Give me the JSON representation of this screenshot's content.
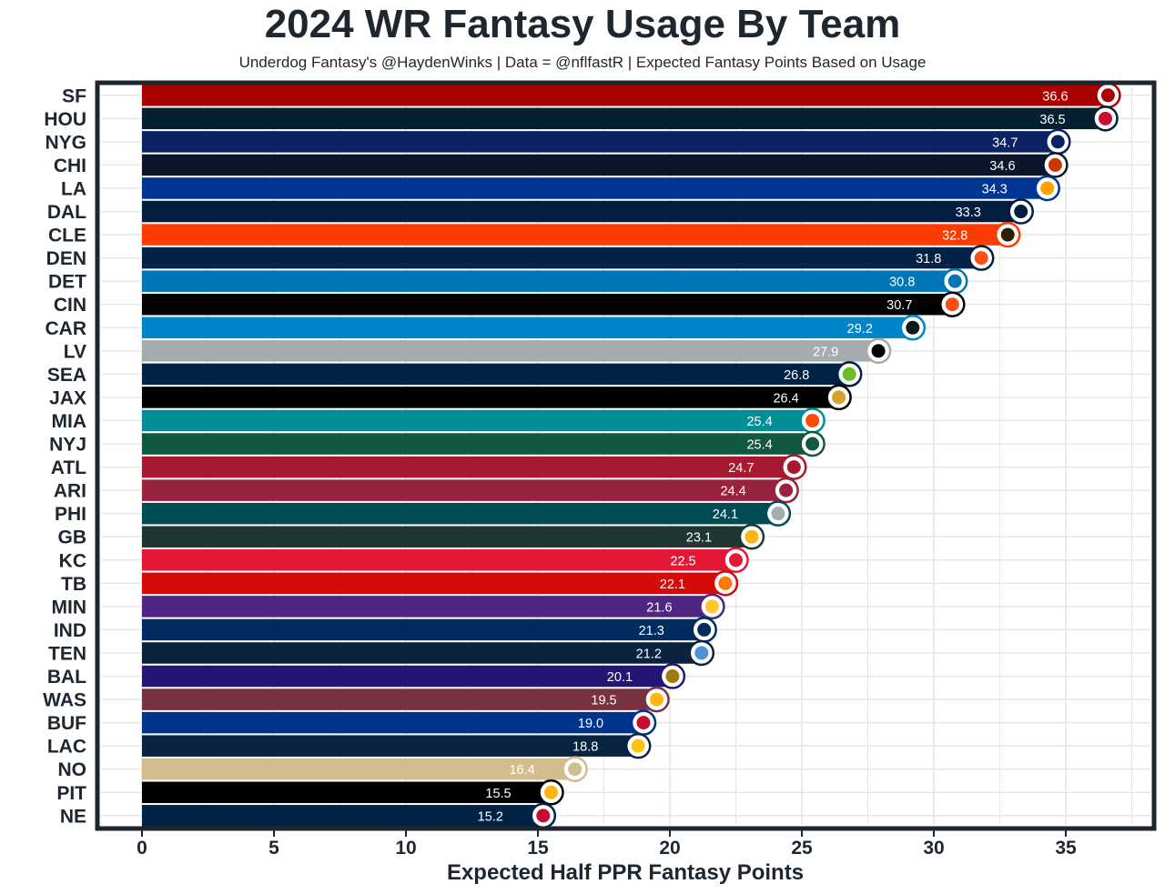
{
  "chart_data": {
    "type": "bar",
    "orientation": "horizontal",
    "title": "2024 WR Fantasy Usage By Team",
    "subtitle": "Underdog Fantasy's @HaydenWinks | Data = @nflfastR | Expected Fantasy Points Based on Usage",
    "xlabel": "Expected Half PPR Fantasy Points",
    "ylabel": "",
    "xlim": [
      0,
      38
    ],
    "xticks": [
      "0",
      "5",
      "10",
      "15",
      "20",
      "25",
      "30",
      "35"
    ],
    "grid": true,
    "legend": "none",
    "categories": [
      "SF",
      "HOU",
      "NYG",
      "CHI",
      "LA",
      "DAL",
      "CLE",
      "DEN",
      "DET",
      "CIN",
      "CAR",
      "LV",
      "SEA",
      "JAX",
      "MIA",
      "NYJ",
      "ATL",
      "ARI",
      "PHI",
      "GB",
      "KC",
      "TB",
      "MIN",
      "IND",
      "TEN",
      "BAL",
      "WAS",
      "BUF",
      "LAC",
      "NO",
      "PIT",
      "NE"
    ],
    "values": [
      36.6,
      36.5,
      34.7,
      34.6,
      34.3,
      33.3,
      32.8,
      31.8,
      30.8,
      30.7,
      29.2,
      27.9,
      26.8,
      26.4,
      25.4,
      25.4,
      24.7,
      24.4,
      24.1,
      23.1,
      22.5,
      22.1,
      21.6,
      21.3,
      21.2,
      20.1,
      19.5,
      19.0,
      18.8,
      16.4,
      15.5,
      15.2
    ],
    "labels": [
      "36.6",
      "36.5",
      "34.7",
      "34.6",
      "34.3",
      "33.3",
      "32.8",
      "31.8",
      "30.8",
      "30.7",
      "29.2",
      "27.9",
      "26.8",
      "26.4",
      "25.4",
      "25.4",
      "24.7",
      "24.4",
      "24.1",
      "23.1",
      "22.5",
      "22.1",
      "21.6",
      "21.3",
      "21.2",
      "20.1",
      "19.5",
      "19.0",
      "18.8",
      "16.4",
      "15.5",
      "15.2"
    ],
    "colors": [
      "#aa0000",
      "#03202f",
      "#0b2265",
      "#0b162a",
      "#003594",
      "#041e42",
      "#ff3c00",
      "#002244",
      "#0076b6",
      "#000000",
      "#0085ca",
      "#a5acaf",
      "#002244",
      "#000000",
      "#008e97",
      "#125740",
      "#a71930",
      "#97233f",
      "#004c54",
      "#203731",
      "#e31837",
      "#d50a0a",
      "#4f2683",
      "#002c5f",
      "#0c2340",
      "#241773",
      "#773141",
      "#00338d",
      "#0a2342",
      "#d3bc8d",
      "#000000",
      "#002244"
    ],
    "logo_colors": [
      "#aa0000",
      "#c8102e",
      "#0b2265",
      "#c83803",
      "#ffa300",
      "#041e42",
      "#311d00",
      "#fb4f14",
      "#0076b6",
      "#fb4f14",
      "#101820",
      "#000000",
      "#69be28",
      "#d7a22a",
      "#fc4c02",
      "#125740",
      "#a71930",
      "#97233f",
      "#a5acaf",
      "#ffb612",
      "#e31837",
      "#ff7900",
      "#ffc62f",
      "#002c5f",
      "#4b92db",
      "#9e7c0c",
      "#ffb612",
      "#c60c30",
      "#ffc20e",
      "#d3bc8d",
      "#ffb612",
      "#c60c30"
    ]
  },
  "icons": [
    "sf-logo-icon",
    "hou-logo-icon",
    "nyg-logo-icon",
    "chi-logo-icon",
    "la-logo-icon",
    "dal-logo-icon",
    "cle-logo-icon",
    "den-logo-icon",
    "det-logo-icon",
    "cin-logo-icon",
    "car-logo-icon",
    "lv-logo-icon",
    "sea-logo-icon",
    "jax-logo-icon",
    "mia-logo-icon",
    "nyj-logo-icon",
    "atl-logo-icon",
    "ari-logo-icon",
    "phi-logo-icon",
    "gb-logo-icon",
    "kc-logo-icon",
    "tb-logo-icon",
    "min-logo-icon",
    "ind-logo-icon",
    "ten-logo-icon",
    "bal-logo-icon",
    "was-logo-icon",
    "buf-logo-icon",
    "lac-logo-icon",
    "no-logo-icon",
    "pit-logo-icon",
    "ne-logo-icon"
  ],
  "style": {
    "frame_color": "#1e2630",
    "grid_color": "#e6e6e6",
    "text_color": "#1e2630",
    "value_label_color": "#ffffff"
  }
}
